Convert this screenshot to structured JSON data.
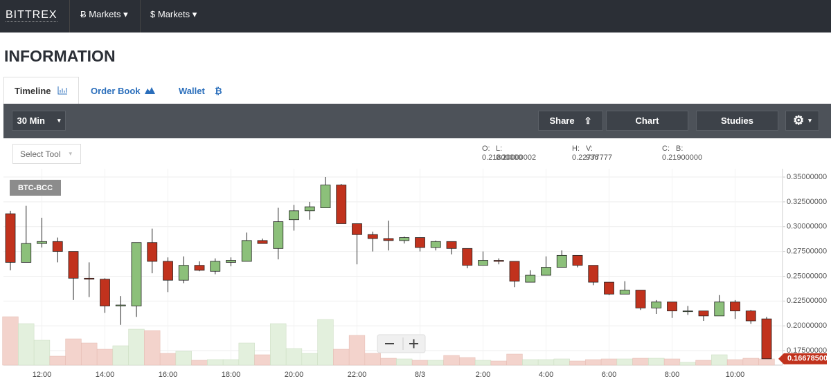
{
  "header": {
    "logo": "BITTREX",
    "nav": [
      {
        "icon": "Ƀ",
        "label": "Markets"
      },
      {
        "icon": "$",
        "label": "Markets"
      }
    ]
  },
  "page_title": "INFORMATION",
  "tabs": [
    {
      "label": "Timeline"
    },
    {
      "label": "Order Book"
    },
    {
      "label": "Wallet",
      "icon": "₿"
    }
  ],
  "toolbar": {
    "interval": "30 Min",
    "share": "Share",
    "chart": "Chart",
    "studies": "Studies",
    "select_tool": "Select Tool"
  },
  "ohlc": [
    {
      "key": "O:",
      "value": "0.21800000"
    },
    {
      "key": "L:",
      "value": "0.20000002"
    },
    {
      "key": "H:",
      "value": "0.22777777"
    },
    {
      "key": "V:",
      "value": "936"
    },
    {
      "key": "C:",
      "value": "0.21900000"
    },
    {
      "key": "B:"
    }
  ],
  "chart_data": {
    "type": "candlestick",
    "symbol": "BTC-BCC",
    "categories": [
      null,
      null,
      "12:00",
      null,
      null,
      null,
      "14:00",
      null,
      null,
      null,
      "16:00",
      null,
      null,
      null,
      "18:00",
      null,
      null,
      null,
      "20:00",
      null,
      null,
      null,
      "22:00",
      null,
      null,
      null,
      "8/3",
      null,
      null,
      null,
      "2:00",
      null,
      null,
      null,
      "4:00",
      null,
      null,
      null,
      "6:00",
      null,
      null,
      null,
      "8:00",
      null,
      null,
      null,
      "10:00",
      null,
      null
    ],
    "open": [
      0.313,
      0.264,
      0.283,
      0.285,
      0.275,
      0.248,
      0.247,
      0.22,
      0.22,
      0.284,
      0.265,
      0.246,
      0.261,
      0.255,
      0.264,
      0.265,
      0.286,
      0.278,
      0.307,
      0.316,
      0.319,
      0.342,
      0.303,
      0.292,
      0.288,
      0.286,
      0.289,
      0.279,
      0.285,
      0.278,
      0.261,
      0.266,
      0.265,
      0.244,
      0.251,
      0.259,
      0.271,
      0.261,
      0.244,
      0.232,
      0.236,
      0.218,
      0.224,
      0.215,
      0.215,
      0.21,
      0.224,
      0.215,
      0.207
    ],
    "high": [
      0.316,
      0.321,
      0.309,
      0.289,
      0.275,
      0.264,
      0.248,
      0.23,
      0.284,
      0.298,
      0.269,
      0.27,
      0.265,
      0.268,
      0.269,
      0.294,
      0.288,
      0.319,
      0.322,
      0.325,
      0.35,
      0.343,
      0.303,
      0.295,
      0.306,
      0.29,
      0.289,
      0.286,
      0.285,
      0.278,
      0.275,
      0.268,
      0.265,
      0.256,
      0.27,
      0.276,
      0.271,
      0.261,
      0.244,
      0.245,
      0.236,
      0.226,
      0.224,
      0.22,
      0.215,
      0.231,
      0.226,
      0.216,
      0.209
    ],
    "low": [
      0.256,
      0.264,
      0.279,
      0.264,
      0.226,
      0.229,
      0.213,
      0.201,
      0.209,
      0.253,
      0.234,
      0.243,
      0.255,
      0.252,
      0.26,
      0.265,
      0.283,
      0.267,
      0.296,
      0.307,
      0.319,
      0.303,
      0.262,
      0.275,
      0.276,
      0.283,
      0.275,
      0.276,
      0.272,
      0.258,
      0.261,
      0.262,
      0.239,
      0.244,
      0.251,
      0.259,
      0.259,
      0.241,
      0.231,
      0.232,
      0.216,
      0.212,
      0.208,
      0.211,
      0.205,
      0.21,
      0.207,
      0.202,
      0.167
    ],
    "close": [
      0.264,
      0.283,
      0.285,
      0.275,
      0.248,
      0.247,
      0.22,
      0.221,
      0.284,
      0.265,
      0.246,
      0.261,
      0.256,
      0.265,
      0.266,
      0.286,
      0.283,
      0.305,
      0.316,
      0.32,
      0.342,
      0.303,
      0.292,
      0.288,
      0.286,
      0.289,
      0.279,
      0.285,
      0.278,
      0.261,
      0.266,
      0.265,
      0.245,
      0.251,
      0.259,
      0.271,
      0.261,
      0.244,
      0.232,
      0.236,
      0.218,
      0.224,
      0.215,
      0.215,
      0.21,
      0.224,
      0.215,
      0.205,
      0.166785
    ],
    "volume": [
      70,
      60,
      36,
      13,
      38,
      32,
      23,
      28,
      52,
      50,
      17,
      20,
      7,
      8,
      8,
      32,
      15,
      60,
      24,
      17,
      66,
      23,
      43,
      17,
      10,
      9,
      7,
      7,
      14,
      11,
      7,
      6,
      16,
      8,
      8,
      9,
      6,
      8,
      9,
      9,
      10,
      10,
      9,
      4,
      7,
      15,
      8,
      10,
      9
    ],
    "up_color": "#8cc07a",
    "down_color": "#c1321d",
    "up_volume_color": "#e3f0dd",
    "down_volume_color": "#f3d3cc",
    "ylim": [
      0.1604,
      0.3577
    ],
    "yticks": [
      {
        "value": 0.175,
        "label": "0.17500000"
      },
      {
        "value": 0.2,
        "label": "0.20000000"
      },
      {
        "value": 0.225,
        "label": "0.22500000"
      },
      {
        "value": 0.25,
        "label": "0.25000000"
      },
      {
        "value": 0.275,
        "label": "0.27500000"
      },
      {
        "value": 0.3,
        "label": "0.30000000"
      },
      {
        "value": 0.325,
        "label": "0.32500000"
      },
      {
        "value": 0.35,
        "label": "0.35000000"
      }
    ],
    "last_price": {
      "value": 0.166785,
      "label": "0.16678500"
    },
    "grid": true
  }
}
